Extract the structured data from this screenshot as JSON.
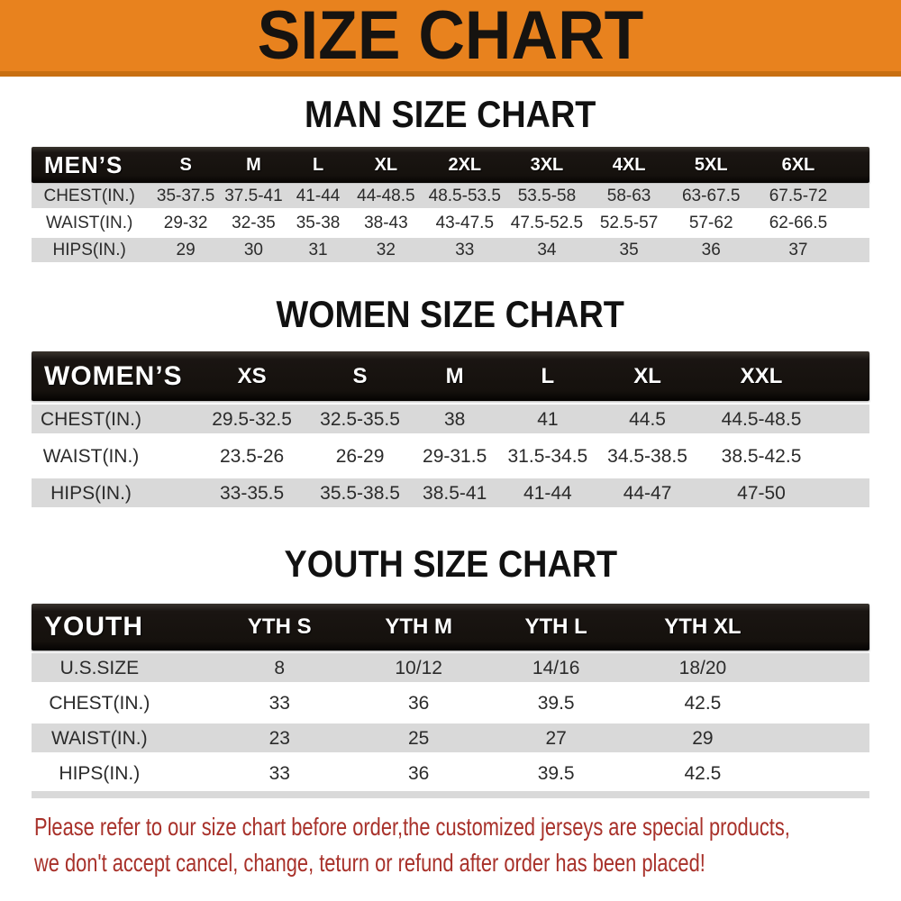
{
  "banner": {
    "title": "SIZE CHART"
  },
  "sections": [
    {
      "id": "men",
      "title": "MAN SIZE CHART",
      "header_label": "MEN’S",
      "columns": [
        "S",
        "M",
        "L",
        "XL",
        "2XL",
        "3XL",
        "4XL",
        "5XL",
        "6XL"
      ],
      "rows": [
        {
          "label": "CHEST(IN.)",
          "values": [
            "35-37.5",
            "37.5-41",
            "41-44",
            "44-48.5",
            "48.5-53.5",
            "53.5-58",
            "58-63",
            "63-67.5",
            "67.5-72"
          ]
        },
        {
          "label": "WAIST(IN.)",
          "values": [
            "29-32",
            "32-35",
            "35-38",
            "38-43",
            "43-47.5",
            "47.5-52.5",
            "52.5-57",
            "57-62",
            "62-66.5"
          ]
        },
        {
          "label": "HIPS(IN.)",
          "values": [
            "29",
            "30",
            "31",
            "32",
            "33",
            "34",
            "35",
            "36",
            "37"
          ]
        }
      ]
    },
    {
      "id": "women",
      "title": "WOMEN SIZE CHART",
      "header_label": "WOMEN’S",
      "columns": [
        "XS",
        "S",
        "M",
        "L",
        "XL",
        "XXL"
      ],
      "rows": [
        {
          "label": "CHEST(IN.)",
          "values": [
            "29.5-32.5",
            "32.5-35.5",
            "38",
            "41",
            "44.5",
            "44.5-48.5"
          ]
        },
        {
          "label": "WAIST(IN.)",
          "values": [
            "23.5-26",
            "26-29",
            "29-31.5",
            "31.5-34.5",
            "34.5-38.5",
            "38.5-42.5"
          ]
        },
        {
          "label": "HIPS(IN.)",
          "values": [
            "33-35.5",
            "35.5-38.5",
            "38.5-41",
            "41-44",
            "44-47",
            "47-50"
          ]
        }
      ]
    },
    {
      "id": "youth",
      "title": "YOUTH SIZE CHART",
      "header_label": "YOUTH",
      "columns": [
        "YTH S",
        "YTH M",
        "YTH L",
        "YTH XL"
      ],
      "rows": [
        {
          "label": "U.S.SIZE",
          "values": [
            "8",
            "10/12",
            "14/16",
            "18/20"
          ]
        },
        {
          "label": "CHEST(IN.)",
          "values": [
            "33",
            "36",
            "39.5",
            "42.5"
          ]
        },
        {
          "label": "WAIST(IN.)",
          "values": [
            "23",
            "25",
            "27",
            "29"
          ]
        },
        {
          "label": "HIPS(IN.)",
          "values": [
            "33",
            "36",
            "39.5",
            "42.5"
          ]
        }
      ]
    }
  ],
  "footer": {
    "line1": "Please refer to our size chart before order,the customized jerseys are special products,",
    "line2": "we don't accept cancel, change, teturn or refund after order has been placed!"
  },
  "colors": {
    "banner_bg": "#E8821E",
    "header_bar_bg": "#171310",
    "row_alt_bg": "#D9D9D9",
    "footer_text": "#A8312A"
  }
}
